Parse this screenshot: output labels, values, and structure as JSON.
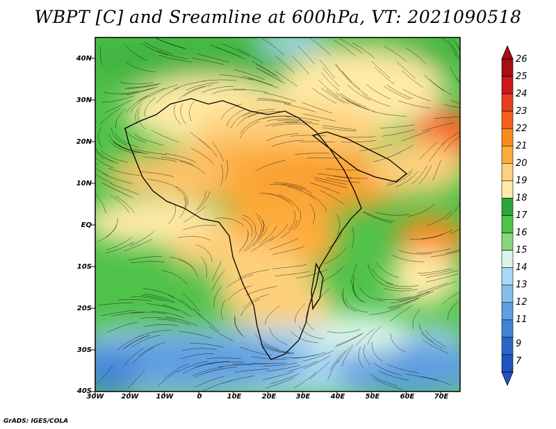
{
  "title": "WBPT [C] and Sreamline at 600hPa, VT: 2021090518",
  "credit": "GrADS: IGES/COLA",
  "map": {
    "lat_labels": [
      "40N",
      "30N",
      "20N",
      "10N",
      "EQ",
      "10S",
      "20S",
      "30S",
      "40S"
    ],
    "lon_labels": [
      "30W",
      "20W",
      "10W",
      "0",
      "10E",
      "20E",
      "30E",
      "40E",
      "50E",
      "60E",
      "70E"
    ],
    "lat_range": [
      -40,
      45
    ],
    "lon_range": [
      -30,
      76
    ],
    "field": "wet-bulb potential temperature with streamlines"
  },
  "colorbar": {
    "levels": [
      "26",
      "25",
      "24",
      "23",
      "22",
      "21",
      "20",
      "19",
      "18",
      "17",
      "16",
      "15",
      "14",
      "13",
      "12",
      "11",
      "9",
      "7"
    ],
    "colors": [
      "#a50f15",
      "#cb181d",
      "#e8401c",
      "#f4611e",
      "#f98b1e",
      "#fcac3a",
      "#fdd07c",
      "#ffeaa6",
      "#2ba63a",
      "#4fc24a",
      "#8ad67a",
      "#d9f5e9",
      "#a9d8f2",
      "#86bdea",
      "#5f9fe0",
      "#3f83d6",
      "#2a67c9",
      "#1f53bf"
    ]
  }
}
